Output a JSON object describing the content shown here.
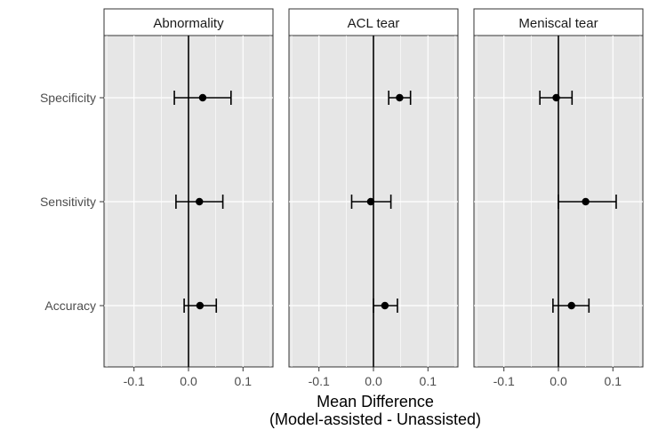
{
  "chart_data": {
    "type": "scatter",
    "subtype": "forest-plot-with-error-bars",
    "xlabel_line1": "Mean Difference",
    "xlabel_line2": "(Model-assisted - Unassisted)",
    "ylabel": "",
    "xlim": [
      -0.155,
      0.155
    ],
    "x_ticks": [
      -0.1,
      0.0,
      0.1
    ],
    "x_tick_labels": [
      "-0.1",
      "0.0",
      "0.1"
    ],
    "categories": [
      "Specificity",
      "Sensitivity",
      "Accuracy"
    ],
    "grid": true,
    "reference_line_x": 0,
    "colors": {
      "panel_bg": "#e6e6e6",
      "grid": "#ffffff",
      "strip_bg": "#ffffff",
      "mark": "#000000"
    },
    "panels": [
      {
        "name": "Abnormality",
        "points": [
          {
            "category": "Specificity",
            "mean": 0.026,
            "lower": -0.026,
            "upper": 0.078
          },
          {
            "category": "Sensitivity",
            "mean": 0.02,
            "lower": -0.023,
            "upper": 0.063
          },
          {
            "category": "Accuracy",
            "mean": 0.021,
            "lower": -0.008,
            "upper": 0.051
          }
        ]
      },
      {
        "name": "ACL tear",
        "points": [
          {
            "category": "Specificity",
            "mean": 0.048,
            "lower": 0.028,
            "upper": 0.068
          },
          {
            "category": "Sensitivity",
            "mean": -0.005,
            "lower": -0.04,
            "upper": 0.032
          },
          {
            "category": "Accuracy",
            "mean": 0.021,
            "lower": 0.0,
            "upper": 0.044
          }
        ]
      },
      {
        "name": "Meniscal tear",
        "points": [
          {
            "category": "Specificity",
            "mean": -0.004,
            "lower": -0.034,
            "upper": 0.025
          },
          {
            "category": "Sensitivity",
            "mean": 0.05,
            "lower": 0.0,
            "upper": 0.106
          },
          {
            "category": "Accuracy",
            "mean": 0.024,
            "lower": -0.01,
            "upper": 0.056
          }
        ]
      }
    ]
  }
}
